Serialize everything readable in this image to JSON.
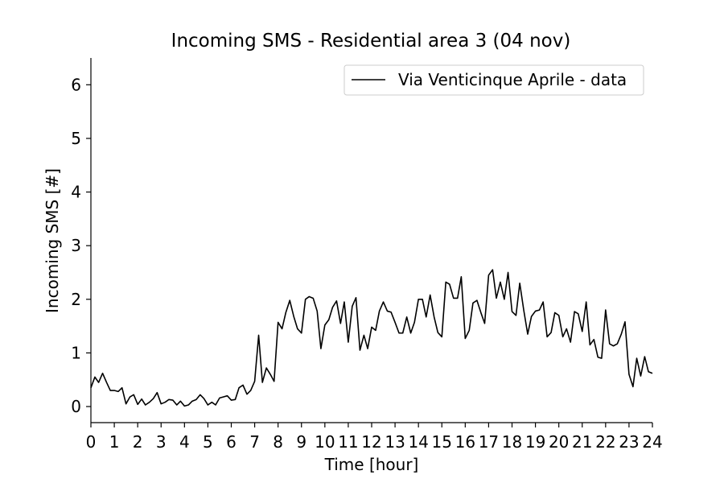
{
  "chart_data": {
    "type": "line",
    "title": "Incoming SMS - Residential area 3 (04 nov)",
    "xlabel": "Time [hour]",
    "ylabel": "Incoming SMS [#]",
    "xlim": [
      0,
      24
    ],
    "ylim": [
      -0.3,
      6.5
    ],
    "x_ticks": [
      "0",
      "1",
      "2",
      "3",
      "4",
      "5",
      "6",
      "7",
      "8",
      "9",
      "10",
      "11",
      "12",
      "13",
      "14",
      "15",
      "16",
      "17",
      "18",
      "19",
      "20",
      "21",
      "22",
      "23",
      "24"
    ],
    "y_ticks": [
      "0",
      "1",
      "2",
      "3",
      "4",
      "5",
      "6"
    ],
    "grid": false,
    "legend_position": "top-right",
    "series": [
      {
        "name": "Via Venticinque Aprile - data",
        "color": "#000000",
        "x": [
          0.0,
          0.17,
          0.33,
          0.5,
          0.67,
          0.83,
          1.0,
          1.17,
          1.33,
          1.5,
          1.67,
          1.83,
          2.0,
          2.17,
          2.33,
          2.5,
          2.67,
          2.83,
          3.0,
          3.17,
          3.33,
          3.5,
          3.67,
          3.83,
          4.0,
          4.17,
          4.33,
          4.5,
          4.67,
          4.83,
          5.0,
          5.17,
          5.33,
          5.5,
          5.67,
          5.83,
          6.0,
          6.17,
          6.33,
          6.5,
          6.67,
          6.83,
          7.0,
          7.17,
          7.33,
          7.5,
          7.67,
          7.83,
          8.0,
          8.17,
          8.33,
          8.5,
          8.67,
          8.83,
          9.0,
          9.17,
          9.33,
          9.5,
          9.67,
          9.83,
          10.0,
          10.17,
          10.33,
          10.5,
          10.67,
          10.83,
          11.0,
          11.17,
          11.33,
          11.5,
          11.67,
          11.83,
          12.0,
          12.17,
          12.33,
          12.5,
          12.67,
          12.83,
          13.0,
          13.17,
          13.33,
          13.5,
          13.67,
          13.83,
          14.0,
          14.17,
          14.33,
          14.5,
          14.67,
          14.83,
          15.0,
          15.17,
          15.33,
          15.5,
          15.67,
          15.83,
          16.0,
          16.17,
          16.33,
          16.5,
          16.67,
          16.83,
          17.0,
          17.17,
          17.33,
          17.5,
          17.67,
          17.83,
          18.0,
          18.17,
          18.33,
          18.5,
          18.67,
          18.83,
          19.0,
          19.17,
          19.33,
          19.5,
          19.67,
          19.83,
          20.0,
          20.17,
          20.33,
          20.5,
          20.67,
          20.83,
          21.0,
          21.17,
          21.33,
          21.5,
          21.67,
          21.83,
          22.0,
          22.17,
          22.33,
          22.5,
          22.67,
          22.83,
          23.0,
          23.17,
          23.33,
          23.5,
          23.67,
          23.83,
          24.0
        ],
        "y": [
          0.35,
          0.55,
          0.45,
          0.62,
          0.45,
          0.3,
          0.3,
          0.28,
          0.35,
          0.05,
          0.18,
          0.22,
          0.04,
          0.14,
          0.03,
          0.08,
          0.15,
          0.26,
          0.05,
          0.08,
          0.13,
          0.12,
          0.03,
          0.1,
          0.01,
          0.03,
          0.1,
          0.13,
          0.22,
          0.15,
          0.03,
          0.08,
          0.03,
          0.16,
          0.18,
          0.2,
          0.12,
          0.13,
          0.35,
          0.4,
          0.23,
          0.3,
          0.47,
          1.33,
          0.45,
          0.72,
          0.6,
          0.47,
          1.57,
          1.45,
          1.75,
          1.98,
          1.68,
          1.45,
          1.37,
          2.0,
          2.05,
          2.02,
          1.78,
          1.08,
          1.52,
          1.62,
          1.85,
          1.97,
          1.55,
          1.95,
          1.2,
          1.87,
          2.03,
          1.05,
          1.33,
          1.08,
          1.48,
          1.42,
          1.78,
          1.95,
          1.78,
          1.76,
          1.57,
          1.37,
          1.37,
          1.67,
          1.37,
          1.57,
          2.0,
          2.0,
          1.67,
          2.08,
          1.67,
          1.38,
          1.3,
          2.32,
          2.28,
          2.02,
          2.02,
          2.42,
          1.27,
          1.42,
          1.93,
          1.98,
          1.75,
          1.55,
          2.45,
          2.55,
          2.02,
          2.32,
          2.0,
          2.5,
          1.77,
          1.7,
          2.3,
          1.8,
          1.35,
          1.68,
          1.78,
          1.8,
          1.95,
          1.3,
          1.38,
          1.75,
          1.7,
          1.3,
          1.45,
          1.2,
          1.77,
          1.73,
          1.4,
          1.95,
          1.15,
          1.25,
          0.92,
          0.9,
          1.8,
          1.17,
          1.13,
          1.17,
          1.35,
          1.58,
          0.6,
          0.37,
          0.9,
          0.57,
          0.93,
          0.65,
          0.62
        ]
      }
    ]
  }
}
